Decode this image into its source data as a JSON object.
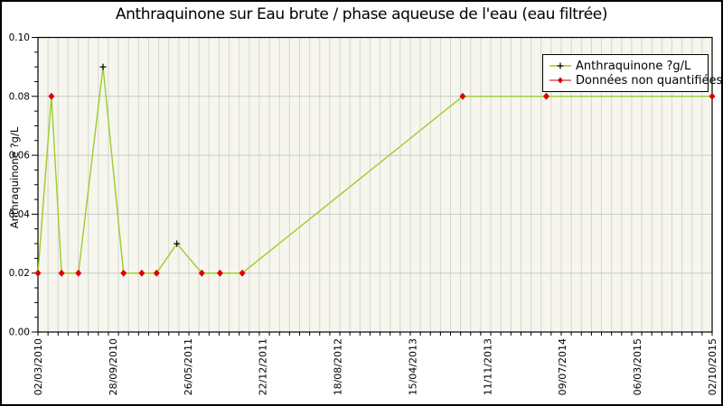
{
  "window": {
    "background": "#ffffff",
    "border_color": "#000000"
  },
  "chart_data": {
    "type": "line",
    "title": "Anthraquinone sur Eau brute / phase aqueuse de l'eau (eau filtrée)",
    "ylabel": "Anthraquinone ?g/L",
    "xlabel": "",
    "ylim": [
      0,
      0.1
    ],
    "y_major_step": 0.02,
    "y_minor_step": 0.005,
    "y_tick_labels": [
      "0.00",
      "0.02",
      "0.04",
      "0.06",
      "0.08",
      "0.10"
    ],
    "x_tick_labels": [
      "02/03/2010",
      "28/09/2010",
      "26/05/2011",
      "22/12/2011",
      "18/08/2012",
      "15/04/2013",
      "11/11/2013",
      "09/07/2014",
      "06/03/2015",
      "02/10/2015"
    ],
    "x_minor_intervals": 67,
    "grid": true,
    "legend": {
      "position": "top-right",
      "entries": [
        {
          "label": "Anthraquinone ?g/L",
          "marker": "plus",
          "marker_color": "#000000",
          "line_color": "#9ccd2a"
        },
        {
          "label": "Données non quantifiées",
          "marker": "diamond",
          "marker_color": "#dd0000",
          "line_color": "#cc0000"
        }
      ]
    },
    "series": [
      {
        "name": "Anthraquinone ?g/L",
        "line_color": "#9ccd2a",
        "points": [
          {
            "x_frac": 0.0,
            "value": 0.02,
            "quantified": false
          },
          {
            "x_frac": 0.02,
            "value": 0.08,
            "quantified": false
          },
          {
            "x_frac": 0.035,
            "value": 0.02,
            "quantified": false
          },
          {
            "x_frac": 0.06,
            "value": 0.02,
            "quantified": false
          },
          {
            "x_frac": 0.0965,
            "value": 0.09,
            "quantified": true
          },
          {
            "x_frac": 0.127,
            "value": 0.02,
            "quantified": false
          },
          {
            "x_frac": 0.154,
            "value": 0.02,
            "quantified": false
          },
          {
            "x_frac": 0.176,
            "value": 0.02,
            "quantified": false
          },
          {
            "x_frac": 0.206,
            "value": 0.03,
            "quantified": true
          },
          {
            "x_frac": 0.243,
            "value": 0.02,
            "quantified": false
          },
          {
            "x_frac": 0.27,
            "value": 0.02,
            "quantified": false
          },
          {
            "x_frac": 0.303,
            "value": 0.02,
            "quantified": false
          },
          {
            "x_frac": 0.63,
            "value": 0.08,
            "quantified": false
          },
          {
            "x_frac": 0.754,
            "value": 0.08,
            "quantified": false
          },
          {
            "x_frac": 1.0,
            "value": 0.08,
            "quantified": false
          }
        ]
      }
    ],
    "colors": {
      "plot_bg": "#f6f6ee",
      "grid_vertical": "#d6d6d2",
      "grid_horizontal": "#c9c9c9",
      "axis": "#000000",
      "legend_bg": "#ffffff",
      "text": "#000000"
    }
  }
}
